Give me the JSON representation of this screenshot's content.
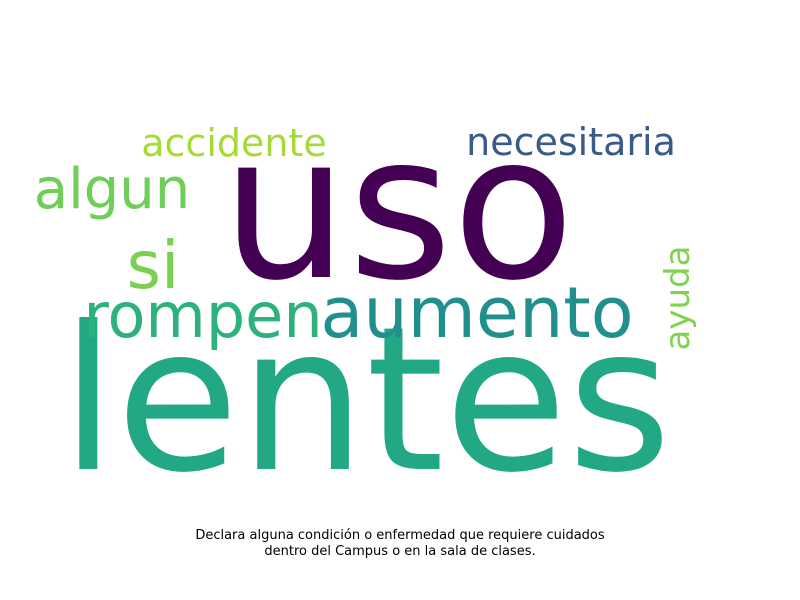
{
  "word_cloud": {
    "words": [
      {
        "text": "uso",
        "color": "#440154"
      },
      {
        "text": "lentes",
        "color": "#22a884"
      },
      {
        "text": "aumento",
        "color": "#21908d"
      },
      {
        "text": "rompen",
        "color": "#2db27d"
      },
      {
        "text": "si",
        "color": "#7ad151"
      },
      {
        "text": "algun",
        "color": "#6ece58"
      },
      {
        "text": "accidente",
        "color": "#a5db36"
      },
      {
        "text": "necesitaria",
        "color": "#3b5a8c"
      },
      {
        "text": "ayuda",
        "color": "#7fd34e"
      }
    ]
  },
  "caption": {
    "line1": "Declara alguna condición o enfermedad que requiere cuidados",
    "line2": "dentro del Campus o en la sala de clases."
  }
}
